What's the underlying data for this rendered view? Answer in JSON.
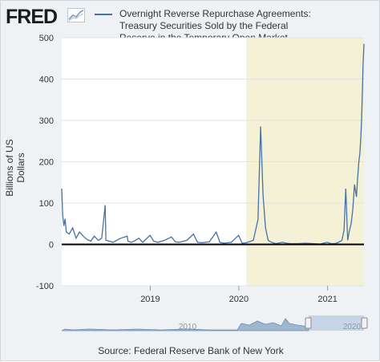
{
  "header": {
    "logo_text": "FRED",
    "legend_label": "Overnight Reverse Repurchase Agreements: Treasury Securities Sold by the Federal Reserve in the Temporary Open Market Operations"
  },
  "footer": {
    "source": "Source: Federal Reserve Bank of New York"
  },
  "navigator": {
    "year_left": "2010",
    "year_right": "2020"
  },
  "colors": {
    "line": "#4572a7",
    "recession": "#f5f1d6",
    "zero_line": "#000000"
  },
  "chart_data": {
    "type": "line",
    "title": "",
    "xlabel": "",
    "ylabel": "Billions of US Dollars",
    "ylim": [
      -100,
      500
    ],
    "yticks": [
      -100,
      0,
      100,
      200,
      300,
      400,
      500
    ],
    "xlim": [
      "2018-01-01",
      "2021-05-31"
    ],
    "xticks": [
      "2019",
      "2020",
      "2021"
    ],
    "grid": true,
    "legend_position": "top",
    "shaded_period": [
      "2020-02-01",
      "2021-05-31"
    ],
    "series": [
      {
        "name": "Overnight Reverse Repurchase Agreements: Treasury Securities Sold by the Federal Reserve in the Temporary Open Market Operations",
        "x": [
          "2018-01-01",
          "2018-01-05",
          "2018-01-10",
          "2018-01-15",
          "2018-01-20",
          "2018-02-01",
          "2018-02-15",
          "2018-03-01",
          "2018-03-15",
          "2018-03-31",
          "2018-04-15",
          "2018-05-01",
          "2018-05-15",
          "2018-06-01",
          "2018-06-15",
          "2018-06-29",
          "2018-07-02",
          "2018-07-15",
          "2018-08-01",
          "2018-08-15",
          "2018-09-01",
          "2018-09-28",
          "2018-10-01",
          "2018-10-15",
          "2018-11-01",
          "2018-11-15",
          "2018-12-01",
          "2018-12-31",
          "2019-01-15",
          "2019-02-01",
          "2019-03-01",
          "2019-03-29",
          "2019-04-15",
          "2019-05-01",
          "2019-06-01",
          "2019-06-28",
          "2019-07-15",
          "2019-08-01",
          "2019-09-01",
          "2019-09-30",
          "2019-10-15",
          "2019-11-01",
          "2019-12-01",
          "2019-12-31",
          "2020-01-15",
          "2020-02-01",
          "2020-03-01",
          "2020-03-20",
          "2020-03-31",
          "2020-04-10",
          "2020-04-20",
          "2020-05-01",
          "2020-05-15",
          "2020-06-01",
          "2020-06-30",
          "2020-07-15",
          "2020-08-01",
          "2020-09-01",
          "2020-10-01",
          "2020-11-01",
          "2020-12-01",
          "2020-12-31",
          "2021-01-15",
          "2021-02-01",
          "2021-02-15",
          "2021-03-01",
          "2021-03-10",
          "2021-03-17",
          "2021-03-25",
          "2021-03-31",
          "2021-04-08",
          "2021-04-15",
          "2021-04-22",
          "2021-04-30",
          "2021-05-05",
          "2021-05-10",
          "2021-05-14",
          "2021-05-18",
          "2021-05-21",
          "2021-05-25",
          "2021-05-27",
          "2021-05-31"
        ],
        "y": [
          135,
          70,
          45,
          62,
          30,
          25,
          40,
          15,
          30,
          20,
          12,
          8,
          20,
          10,
          15,
          95,
          10,
          8,
          5,
          10,
          15,
          20,
          8,
          5,
          10,
          15,
          5,
          22,
          8,
          5,
          10,
          18,
          6,
          5,
          10,
          25,
          5,
          4,
          6,
          30,
          5,
          3,
          5,
          22,
          3,
          4,
          10,
          60,
          285,
          120,
          40,
          10,
          5,
          2,
          5,
          3,
          2,
          2,
          3,
          2,
          1,
          5,
          2,
          2,
          5,
          10,
          35,
          135,
          10,
          30,
          50,
          85,
          145,
          115,
          160,
          200,
          220,
          260,
          300,
          380,
          430,
          485
        ]
      }
    ]
  }
}
